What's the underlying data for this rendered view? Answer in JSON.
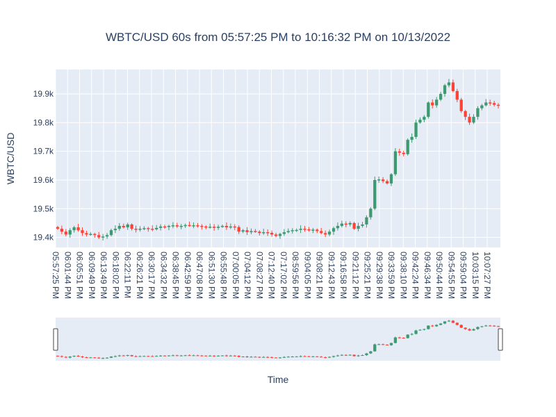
{
  "chart_data": {
    "type": "candlestick",
    "title": "WBTC/USD 60s from 05:57:25 PM to 10:16:32 PM on 10/13/2022",
    "xlabel": "Time",
    "ylabel": "WBTC/USD",
    "ylim": [
      19365,
      19985
    ],
    "y_ticks": [
      {
        "value": 19400,
        "label": "19.4k"
      },
      {
        "value": 19500,
        "label": "19.5k"
      },
      {
        "value": 19600,
        "label": "19.6k"
      },
      {
        "value": 19700,
        "label": "19.7k"
      },
      {
        "value": 19800,
        "label": "19.8k"
      },
      {
        "value": 19900,
        "label": "19.9k"
      }
    ],
    "x_tick_labels": [
      "05:57:25 PM",
      "06:01:44 PM",
      "06:05:51 PM",
      "06:09:49 PM",
      "06:13:49 PM",
      "06:18:02 PM",
      "06:22:11 PM",
      "06:26:21 PM",
      "06:30:17 PM",
      "06:34:32 PM",
      "06:38:45 PM",
      "06:42:59 PM",
      "06:47:08 PM",
      "06:51:30 PM",
      "06:55:48 PM",
      "07:00:05 PM",
      "07:04:12 PM",
      "07:08:27 PM",
      "07:12:40 PM",
      "07:17:02 PM",
      "08:59:56 PM",
      "09:04:05 PM",
      "09:08:21 PM",
      "09:12:43 PM",
      "09:16:58 PM",
      "09:21:12 PM",
      "09:25:21 PM",
      "09:29:38 PM",
      "09:33:59 PM",
      "09:38:10 PM",
      "09:42:24 PM",
      "09:46:34 PM",
      "09:50:44 PM",
      "09:54:55 PM",
      "09:59:04 PM",
      "10:03:15 PM",
      "10:07:27 PM"
    ],
    "increasing_color": "#3d9970",
    "decreasing_color": "#ff4136",
    "grid": true,
    "rangeslider": true,
    "closes": [
      19430,
      19420,
      19410,
      19425,
      19435,
      19425,
      19415,
      19410,
      19412,
      19408,
      19400,
      19403,
      19408,
      19425,
      19430,
      19440,
      19435,
      19445,
      19430,
      19428,
      19430,
      19432,
      19430,
      19428,
      19433,
      19438,
      19436,
      19440,
      19442,
      19438,
      19440,
      19443,
      19441,
      19442,
      19440,
      19438,
      19436,
      19437,
      19433,
      19437,
      19440,
      19435,
      19438,
      19436,
      19420,
      19425,
      19418,
      19422,
      19420,
      19415,
      19418,
      19416,
      19410,
      19405,
      19412,
      19418,
      19422,
      19425,
      19426,
      19430,
      19428,
      19425,
      19427,
      19422,
      19415,
      19410,
      19420,
      19432,
      19440,
      19448,
      19445,
      19450,
      19430,
      19440,
      19445,
      19470,
      19500,
      19600,
      19602,
      19596,
      19588,
      19620,
      19700,
      19695,
      19690,
      19740,
      19750,
      19800,
      19810,
      19820,
      19870,
      19860,
      19880,
      19900,
      19930,
      19940,
      19910,
      19880,
      19840,
      19820,
      19800,
      19820,
      19850,
      19860,
      19870,
      19868,
      19862,
      19860
    ]
  }
}
